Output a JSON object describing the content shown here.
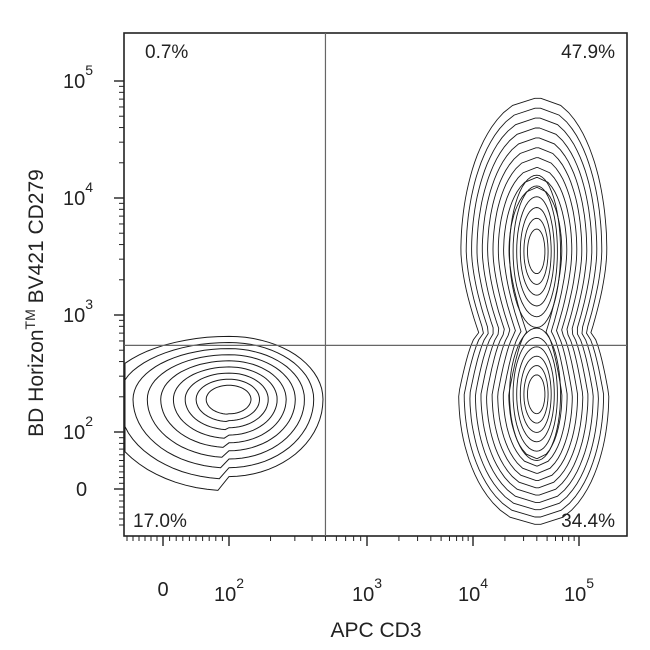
{
  "chart_data": {
    "type": "contour",
    "xlabel": "APC CD3",
    "ylabel_parts": {
      "pre": "BD Horizon",
      "sup": "TM",
      "post": " BV421 CD279"
    },
    "x_scale": "biexponential",
    "y_scale": "biexponential",
    "x_ticks": [
      {
        "value": 0,
        "base": "0",
        "exp": ""
      },
      {
        "value": 100,
        "base": "10",
        "exp": "2"
      },
      {
        "value": 1000,
        "base": "10",
        "exp": "3"
      },
      {
        "value": 10000,
        "base": "10",
        "exp": "4"
      },
      {
        "value": 100000,
        "base": "10",
        "exp": "5"
      }
    ],
    "y_ticks": [
      {
        "value": 0,
        "base": "0",
        "exp": ""
      },
      {
        "value": 100,
        "base": "10",
        "exp": "2"
      },
      {
        "value": 1000,
        "base": "10",
        "exp": "3"
      },
      {
        "value": 10000,
        "base": "10",
        "exp": "4"
      },
      {
        "value": 100000,
        "base": "10",
        "exp": "5"
      }
    ],
    "gates": {
      "x_threshold": 500,
      "y_threshold": 550
    },
    "quadrants": [
      {
        "position": "top-left",
        "label": "0.7%"
      },
      {
        "position": "top-right",
        "label": "47.9%"
      },
      {
        "position": "bottom-left",
        "label": "17.0%"
      },
      {
        "position": "bottom-right",
        "label": "34.4%"
      }
    ],
    "populations": [
      {
        "name": "",
        "center": {
          "x": 100,
          "y": 190
        },
        "levels": 9
      },
      {
        "name": "",
        "center": {
          "x": 40000,
          "y": 3500
        },
        "levels": 16
      },
      {
        "name": "",
        "center": {
          "x": 40000,
          "y": 210
        },
        "levels": 16
      }
    ]
  }
}
